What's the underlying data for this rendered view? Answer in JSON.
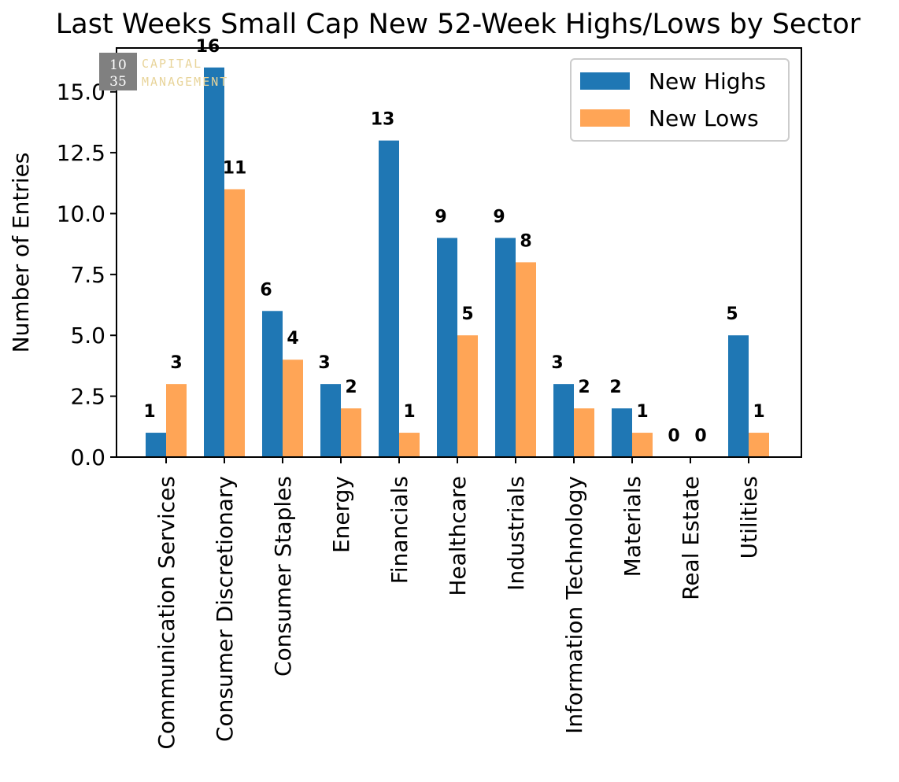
{
  "chart_data": {
    "type": "bar",
    "title": "Last Weeks Small Cap New 52-Week Highs/Lows by Sector",
    "xlabel": "",
    "ylabel": "Number of Entries",
    "ylim": [
      0,
      16.8
    ],
    "yticks": [
      "0.0",
      "2.5",
      "5.0",
      "7.5",
      "10.0",
      "12.5",
      "15.0"
    ],
    "categories": [
      "Communication Services",
      "Consumer Discretionary",
      "Consumer Staples",
      "Energy",
      "Financials",
      "Healthcare",
      "Industrials",
      "Information Technology",
      "Materials",
      "Real Estate",
      "Utilities"
    ],
    "series": [
      {
        "name": "New Highs",
        "color": "#1f77b4",
        "values": [
          1,
          16,
          6,
          3,
          13,
          9,
          9,
          3,
          2,
          0,
          5
        ]
      },
      {
        "name": "New Lows",
        "color": "#ffa556",
        "values": [
          3,
          11,
          4,
          2,
          1,
          5,
          8,
          2,
          1,
          0,
          1
        ]
      }
    ],
    "legend_position": "top-right",
    "grid": false
  },
  "watermark": {
    "num_top": "10",
    "num_bottom": "35",
    "line1": "CAPITAL",
    "line2": "MANAGEMENT",
    "box_color": "#808080",
    "text_color": "#e8d49a"
  }
}
